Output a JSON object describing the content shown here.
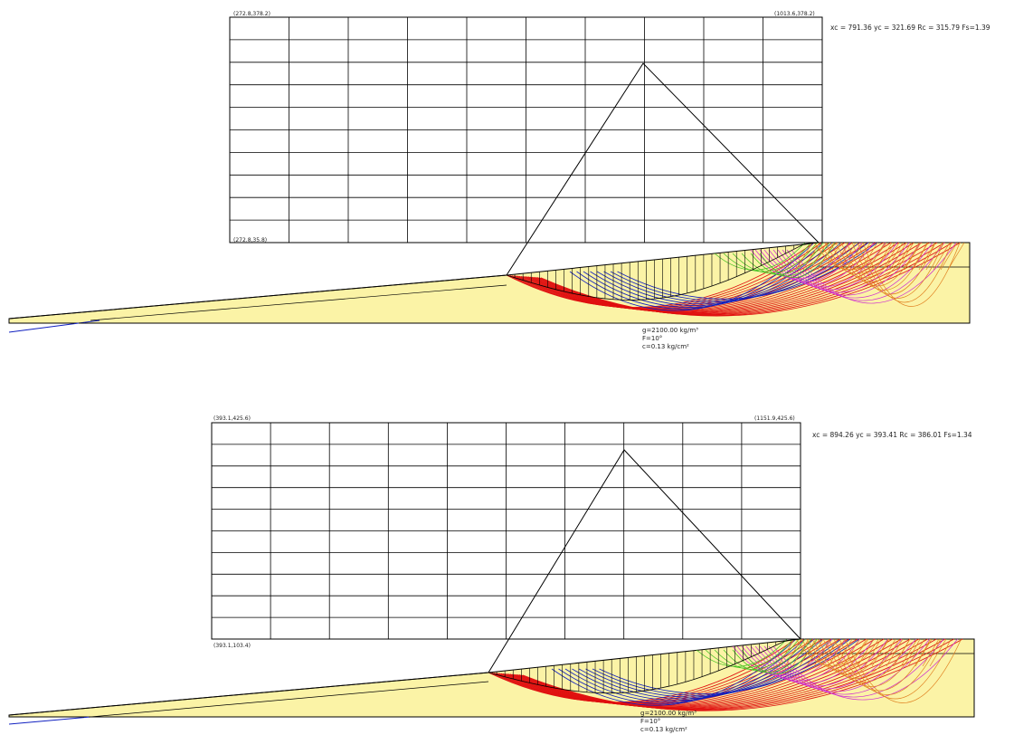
{
  "panels": [
    {
      "corner_labels": {
        "top_left": "(272.8,378.2)",
        "top_right": "(1013.6,378.2)",
        "bottom_left": "(272.8,35.8)"
      },
      "result": "xc = 791.36 yc = 321.69 Rc = 315.79 Fs=1.39",
      "soil": {
        "gamma": "g=2100.00 kg/m³",
        "phi": "F=10°",
        "c": "c=0.13 kg/cm²"
      },
      "colors": {
        "soil": "#fbf3a6",
        "grid": "#000000",
        "red": "#e01010",
        "blue": "#1020c0",
        "magenta": "#d030d0",
        "green": "#40c020",
        "orange": "#e08020"
      }
    },
    {
      "corner_labels": {
        "top_left": "(393.1,425.6)",
        "top_right": "(1151.9,425.6)",
        "bottom_left": "(393.1,103.4)"
      },
      "result": "xc = 894.26 yc = 393.41 Rc = 386.01 Fs=1.34",
      "soil": {
        "gamma": "g=2100.00 kg/m³",
        "phi": "F=10°",
        "c": "c=0.13 kg/cm²"
      },
      "colors": {
        "soil": "#fbf3a6",
        "grid": "#000000",
        "red": "#e01010",
        "blue": "#1020c0",
        "magenta": "#d030d0",
        "green": "#40c020",
        "orange": "#e08020"
      }
    }
  ]
}
